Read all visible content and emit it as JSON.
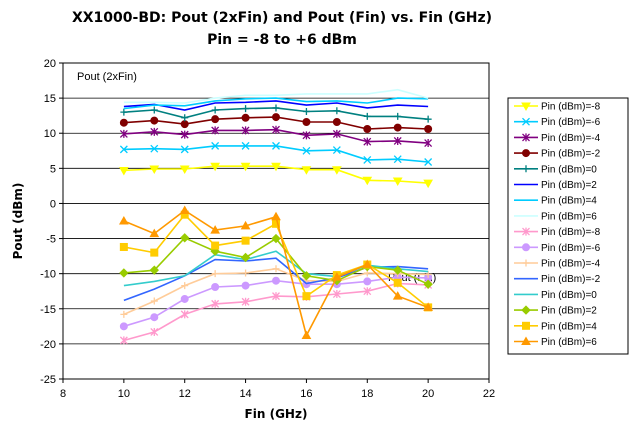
{
  "chart_data": {
    "type": "line",
    "title": "XX1000-BD: Pout (2xFin) and Pout (Fin) vs. Fin (GHz)",
    "subtitle": "Pin = -8 to +6 dBm",
    "xlabel": "Fin (GHz)",
    "ylabel": "Pout (dBm)",
    "xlim": [
      8,
      22
    ],
    "ylim": [
      -25,
      20
    ],
    "xticks": [
      8,
      10,
      12,
      14,
      16,
      18,
      20,
      22
    ],
    "yticks": [
      -25,
      -20,
      -15,
      -10,
      -5,
      0,
      5,
      10,
      15,
      20
    ],
    "grid": "horizontal",
    "legend_position": "right",
    "annotations": [
      {
        "text": "Pout (2xFin)",
        "x": 8.7,
        "y": 18.5
      },
      {
        "text": "Pout (Fin)",
        "x": 17.5,
        "y": -7.5
      }
    ],
    "x": [
      10,
      11,
      12,
      13,
      14,
      15,
      16,
      17,
      18,
      19,
      20
    ],
    "series": [
      {
        "name": "Pin (dBm)=-8",
        "color": "#ffff00",
        "marker": "triangle-down",
        "values": [
          4.7,
          4.9,
          4.9,
          5.3,
          5.3,
          5.3,
          4.8,
          4.8,
          3.3,
          3.2,
          2.9
        ]
      },
      {
        "name": "Pin (dBm)=-6",
        "color": "#00ccff",
        "marker": "x",
        "values": [
          7.7,
          7.8,
          7.7,
          8.2,
          8.2,
          8.2,
          7.5,
          7.6,
          6.2,
          6.3,
          5.9
        ]
      },
      {
        "name": "Pin (dBm)=-4",
        "color": "#800080",
        "marker": "star",
        "values": [
          9.9,
          10.2,
          9.8,
          10.4,
          10.4,
          10.5,
          9.7,
          9.9,
          8.8,
          8.9,
          8.6
        ]
      },
      {
        "name": "Pin (dBm)=-2",
        "color": "#800000",
        "marker": "circle",
        "values": [
          11.5,
          11.8,
          11.3,
          12.0,
          12.2,
          12.3,
          11.6,
          11.6,
          10.6,
          10.8,
          10.6
        ]
      },
      {
        "name": "Pin (dBm)=0",
        "color": "#008080",
        "marker": "plus",
        "values": [
          13.0,
          13.3,
          12.2,
          13.3,
          13.5,
          13.6,
          13.1,
          13.2,
          12.4,
          12.4,
          12.0
        ]
      },
      {
        "name": "Pin (dBm)=2",
        "color": "#0000ff",
        "marker": "none",
        "values": [
          13.8,
          14.1,
          13.3,
          14.3,
          14.4,
          14.6,
          14.0,
          14.3,
          13.6,
          14.0,
          13.8
        ]
      },
      {
        "name": "Pin (dBm)=4",
        "color": "#00ccff",
        "marker": "none",
        "values": [
          13.5,
          14.0,
          13.9,
          14.6,
          14.9,
          15.0,
          14.5,
          14.6,
          14.3,
          15.0,
          14.9
        ]
      },
      {
        "name": "Pin (dBm)=6",
        "color": "#ccffff",
        "marker": "none",
        "values": [
          14.4,
          14.4,
          14.3,
          15.0,
          15.4,
          15.4,
          15.6,
          15.6,
          15.6,
          16.2,
          15.0
        ]
      },
      {
        "name": "Pin (dBm)=-8",
        "color": "#ff99cc",
        "marker": "star",
        "values": [
          -19.5,
          -18.3,
          -15.8,
          -14.3,
          -14.0,
          -13.2,
          -13.3,
          -12.9,
          -12.5,
          -11.4,
          -11.6
        ]
      },
      {
        "name": "Pin (dBm)=-6",
        "color": "#cc99ff",
        "marker": "circle",
        "values": [
          -17.5,
          -16.2,
          -13.6,
          -11.9,
          -11.7,
          -11.0,
          -11.5,
          -11.5,
          -11.1,
          -10.5,
          -10.6
        ]
      },
      {
        "name": "Pin (dBm)=-4",
        "color": "#ffcc99",
        "marker": "plus",
        "values": [
          -15.8,
          -13.9,
          -11.7,
          -10.0,
          -9.9,
          -9.3,
          -11.0,
          -11.1,
          -9.9,
          -10.0,
          -10.1
        ]
      },
      {
        "name": "Pin (dBm)=-2",
        "color": "#3366ff",
        "marker": "none",
        "values": [
          -13.8,
          -12.2,
          -10.3,
          -8.0,
          -8.2,
          -7.8,
          -11.4,
          -10.6,
          -9.1,
          -9.0,
          -9.3
        ]
      },
      {
        "name": "Pin (dBm)=0",
        "color": "#33cccc",
        "marker": "none",
        "values": [
          -11.7,
          -11.1,
          -10.3,
          -7.3,
          -8.0,
          -6.8,
          -10.0,
          -10.4,
          -8.8,
          -9.3,
          -9.7
        ]
      },
      {
        "name": "Pin (dBm)=2",
        "color": "#99cc00",
        "marker": "diamond",
        "values": [
          -9.9,
          -9.5,
          -4.9,
          -6.8,
          -7.7,
          -5.0,
          -10.3,
          -11.0,
          -9.0,
          -9.5,
          -11.5
        ]
      },
      {
        "name": "Pin (dBm)=4",
        "color": "#ffcc00",
        "marker": "square",
        "values": [
          -6.2,
          -7.0,
          -1.6,
          -6.0,
          -5.3,
          -2.9,
          -13.2,
          -10.2,
          -8.7,
          -11.3,
          -14.8
        ]
      },
      {
        "name": "Pin (dBm)=6",
        "color": "#ff9900",
        "marker": "triangle",
        "values": [
          -2.5,
          -4.3,
          -1.0,
          -3.8,
          -3.2,
          -1.9,
          -18.8,
          -10.5,
          -8.7,
          -13.2,
          -14.8
        ]
      }
    ]
  }
}
